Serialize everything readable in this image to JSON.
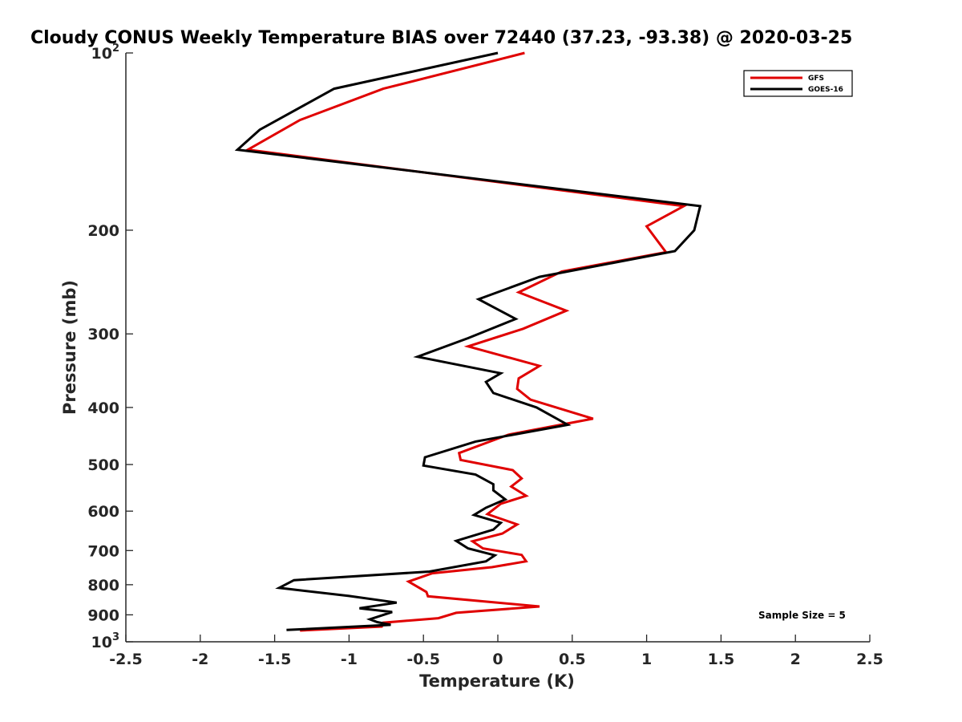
{
  "chart_data": {
    "type": "line",
    "title": "Cloudy CONUS Weekly Temperature BIAS over 72440 (37.23, -93.38) @ 2020-03-25",
    "xlabel": "Temperature (K)",
    "ylabel": "Pressure (mb)",
    "xlim": [
      -2.5,
      2.5
    ],
    "ylim": [
      100,
      1000
    ],
    "yscale": "log",
    "yreversed": true,
    "grid": false,
    "legend_position": "top-right",
    "x_ticks": [
      {
        "value": -2.5,
        "label": "-2.5"
      },
      {
        "value": -2,
        "label": "-2"
      },
      {
        "value": -1.5,
        "label": "-1.5"
      },
      {
        "value": -1,
        "label": "-1"
      },
      {
        "value": -0.5,
        "label": "-0.5"
      },
      {
        "value": 0,
        "label": "0"
      },
      {
        "value": 0.5,
        "label": "0.5"
      },
      {
        "value": 1,
        "label": "1"
      },
      {
        "value": 1.5,
        "label": "1.5"
      },
      {
        "value": 2,
        "label": "2"
      },
      {
        "value": 2.5,
        "label": "2.5"
      }
    ],
    "y_ticks": [
      {
        "value": 100,
        "base": "10",
        "exp": "2"
      },
      {
        "value": 200,
        "label": "200"
      },
      {
        "value": 300,
        "label": "300"
      },
      {
        "value": 400,
        "label": "400"
      },
      {
        "value": 500,
        "label": "500"
      },
      {
        "value": 600,
        "label": "600"
      },
      {
        "value": 700,
        "label": "700"
      },
      {
        "value": 800,
        "label": "800"
      },
      {
        "value": 900,
        "label": "900"
      },
      {
        "value": 1000,
        "base": "10",
        "exp": "3"
      }
    ],
    "annotation": "Sample Size = 5",
    "series": [
      {
        "name": "GFS",
        "color": "#e00000",
        "points": [
          [
            0.18,
            100
          ],
          [
            -0.77,
            115
          ],
          [
            -1.33,
            130
          ],
          [
            -1.68,
            146
          ],
          [
            1.25,
            182
          ],
          [
            1.0,
            197
          ],
          [
            1.13,
            218
          ],
          [
            0.43,
            235
          ],
          [
            0.14,
            255
          ],
          [
            0.46,
            274
          ],
          [
            0.17,
            294
          ],
          [
            -0.2,
            315
          ],
          [
            0.28,
            340
          ],
          [
            0.14,
            357
          ],
          [
            0.13,
            372
          ],
          [
            0.22,
            388
          ],
          [
            0.64,
            418
          ],
          [
            0.07,
            445
          ],
          [
            -0.26,
            478
          ],
          [
            -0.25,
            491
          ],
          [
            0.1,
            511
          ],
          [
            0.16,
            528
          ],
          [
            0.09,
            545
          ],
          [
            0.19,
            565
          ],
          [
            0.02,
            583
          ],
          [
            -0.07,
            607
          ],
          [
            0.13,
            632
          ],
          [
            0.03,
            655
          ],
          [
            -0.17,
            675
          ],
          [
            -0.1,
            694
          ],
          [
            0.16,
            712
          ],
          [
            0.19,
            730
          ],
          [
            -0.04,
            747
          ],
          [
            -0.44,
            765
          ],
          [
            -0.6,
            790
          ],
          [
            -0.48,
            823
          ],
          [
            -0.47,
            837
          ],
          [
            0.28,
            871
          ],
          [
            -0.28,
            893
          ],
          [
            -0.4,
            912
          ],
          [
            -0.77,
            928
          ],
          [
            -0.78,
            942
          ],
          [
            -1.33,
            957
          ]
        ]
      },
      {
        "name": "GOES-16",
        "color": "#000000",
        "points": [
          [
            0.0,
            100
          ],
          [
            -1.1,
            115
          ],
          [
            -1.6,
            135
          ],
          [
            -1.75,
            146
          ],
          [
            1.36,
            182
          ],
          [
            1.32,
            200
          ],
          [
            1.19,
            217
          ],
          [
            0.28,
            240
          ],
          [
            -0.13,
            262
          ],
          [
            0.12,
            283
          ],
          [
            -0.2,
            305
          ],
          [
            -0.54,
            328
          ],
          [
            0.02,
            350
          ],
          [
            -0.08,
            362
          ],
          [
            -0.03,
            378
          ],
          [
            0.26,
            400
          ],
          [
            0.47,
            428
          ],
          [
            -0.15,
            457
          ],
          [
            -0.49,
            486
          ],
          [
            -0.5,
            502
          ],
          [
            -0.15,
            520
          ],
          [
            -0.03,
            540
          ],
          [
            -0.03,
            553
          ],
          [
            0.05,
            573
          ],
          [
            -0.08,
            592
          ],
          [
            -0.16,
            609
          ],
          [
            0.02,
            628
          ],
          [
            -0.03,
            645
          ],
          [
            -0.28,
            674
          ],
          [
            -0.2,
            694
          ],
          [
            -0.02,
            713
          ],
          [
            -0.08,
            730
          ],
          [
            -0.46,
            760
          ],
          [
            -1.37,
            786
          ],
          [
            -1.47,
            810
          ],
          [
            -1.0,
            836
          ],
          [
            -0.68,
            858
          ],
          [
            -0.93,
            877
          ],
          [
            -0.71,
            890
          ],
          [
            -0.86,
            916
          ],
          [
            -0.81,
            926
          ],
          [
            -0.72,
            936
          ],
          [
            -1.42,
            955
          ]
        ]
      }
    ]
  }
}
